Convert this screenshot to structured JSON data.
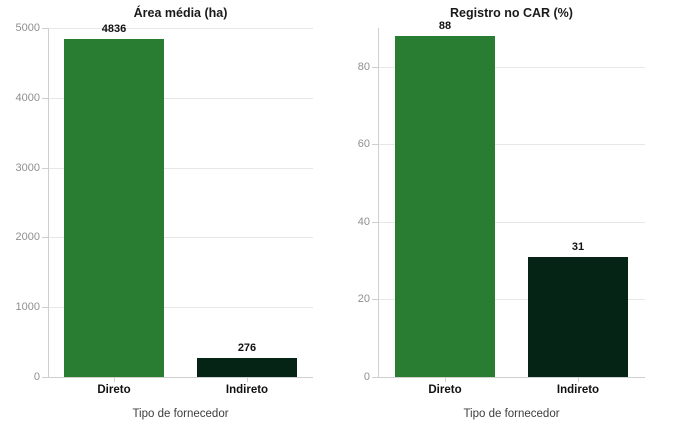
{
  "figure": {
    "background": "#ffffff",
    "caption_shared": "Tipo de fornecedor"
  },
  "colors": {
    "bar_direto": "#287d32",
    "bar_indireto": "#062415",
    "grid": "#e7e7e7",
    "axis": "#cfcfcf",
    "tick_text": "#8f8f8f",
    "title_text": "#1a1a1a",
    "value_text": "#111111",
    "caption_text": "#3d3d3d"
  },
  "chart_data": [
    {
      "type": "bar",
      "title": "Área média (ha)",
      "xlabel": "Tipo de fornecedor",
      "ylabel": "",
      "categories": [
        "Direto",
        "Indireto"
      ],
      "values": [
        4836,
        276
      ],
      "value_labels": [
        "4836",
        "276"
      ],
      "bar_colors": [
        "#287d32",
        "#062415"
      ],
      "ylim": [
        0,
        5000
      ],
      "yticks": [
        0,
        1000,
        2000,
        3000,
        4000,
        5000
      ],
      "grid": true,
      "legend": "none"
    },
    {
      "type": "bar",
      "title": "Registro no CAR (%)",
      "xlabel": "Tipo de fornecedor",
      "ylabel": "",
      "categories": [
        "Direto",
        "Indireto"
      ],
      "values": [
        88,
        31
      ],
      "value_labels": [
        "88",
        "31"
      ],
      "bar_colors": [
        "#287d32",
        "#062415"
      ],
      "ylim": [
        0,
        90
      ],
      "yticks": [
        0,
        20,
        40,
        60,
        80
      ],
      "grid": true,
      "legend": "none"
    }
  ]
}
